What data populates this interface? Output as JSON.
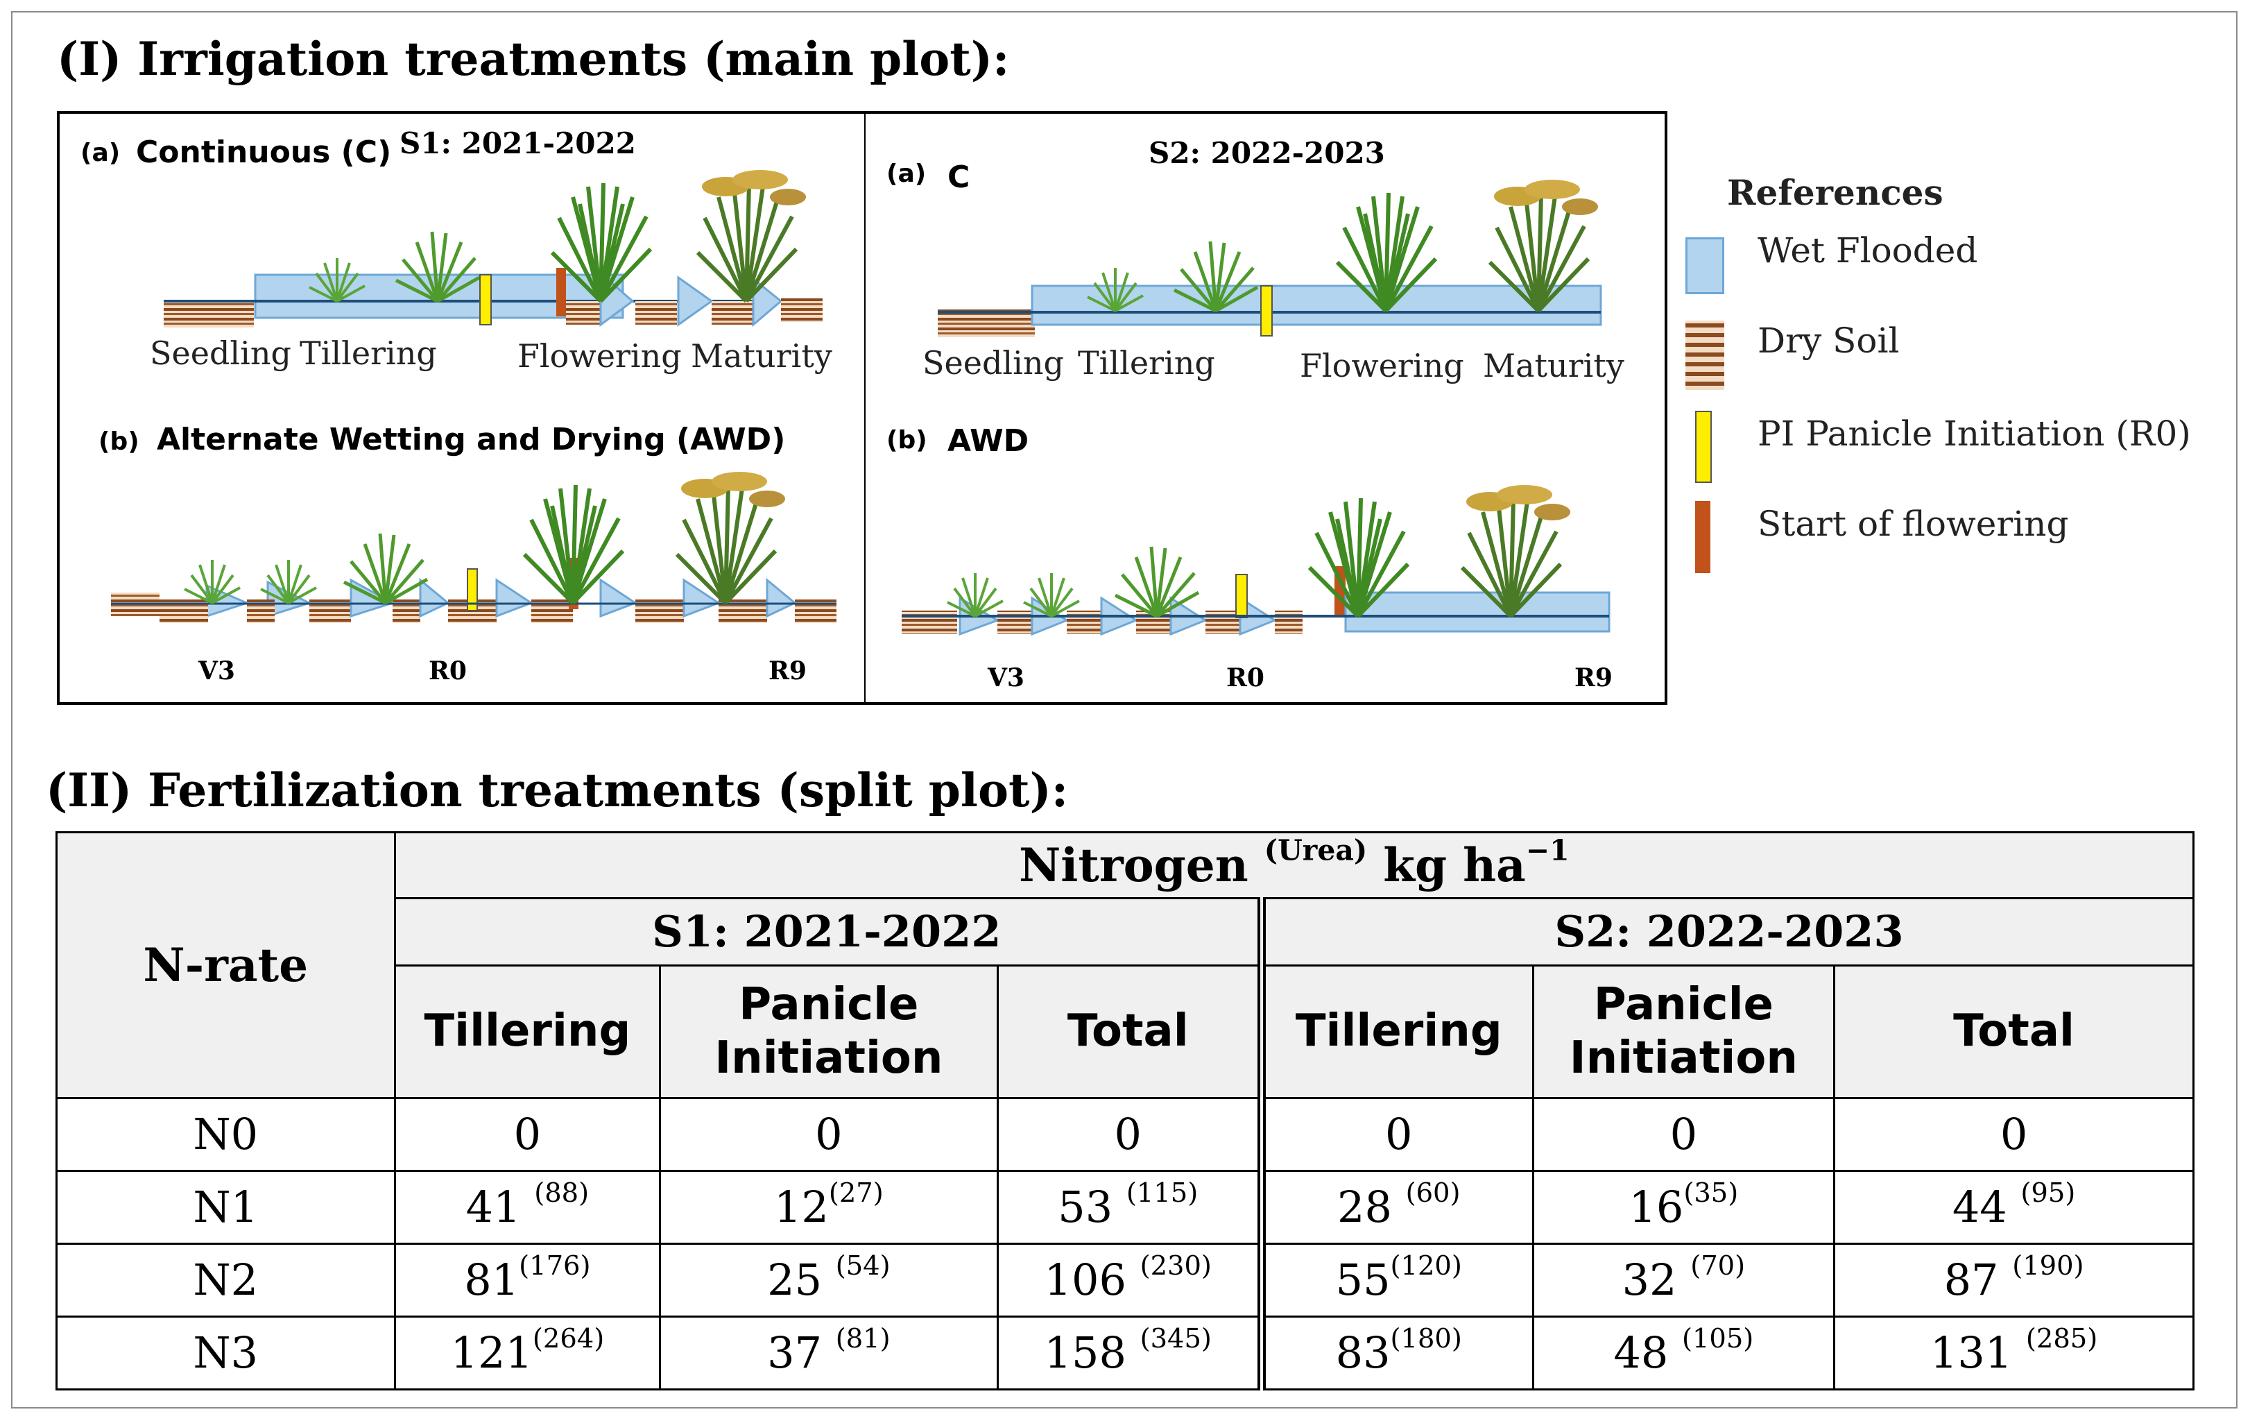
{
  "section1": {
    "title": "(I) Irrigation treatments (main plot):"
  },
  "panel_s1": {
    "season": "S1: 2021-2022",
    "a_letter": "(a)",
    "a_title": "Continuous (C)",
    "a_stages": [
      "Seedling",
      "Tillering",
      "Flowering",
      "Maturity"
    ],
    "b_letter": "(b)",
    "b_title": "Alternate Wetting and Drying (AWD)",
    "b_stages": [
      "V3",
      "R0",
      "R9"
    ]
  },
  "panel_s2": {
    "season": "S2: 2022-2023",
    "a_letter": "(a)",
    "a_title": "C",
    "a_stages": [
      "Seedling",
      "Tillering",
      "Flowering",
      "Maturity"
    ],
    "b_letter": "(b)",
    "b_title": "AWD",
    "b_stages": [
      "V3",
      "R0",
      "R9"
    ]
  },
  "references": {
    "title": "References",
    "items": [
      {
        "label": "Wet Flooded",
        "icon": "wet-flooded-swatch",
        "color": "#b3d4ee"
      },
      {
        "label": "Dry Soil",
        "icon": "dry-soil-swatch",
        "color": "#8b4a20"
      },
      {
        "label": "PI Panicle Initiation (R0)",
        "icon": "panicle-initiation-marker",
        "color": "#ffee00"
      },
      {
        "label": "Start of flowering",
        "icon": "flowering-start-marker",
        "color": "#c0521a"
      }
    ]
  },
  "section2": {
    "title": "(II) Fertilization treatments (split plot):"
  },
  "table": {
    "nrate_header": "N-rate",
    "nitrogen_header": "Nitrogen",
    "nitrogen_sup": "(Urea)",
    "nitrogen_unit": "kg ha",
    "nitrogen_unit_sup": "−1",
    "season1": "S1: 2021-2022",
    "season2": "S2: 2022-2023",
    "col_tillering": "Tillering",
    "col_panicle_1": "Panicle",
    "col_panicle_2": "Initiation",
    "col_total": "Total",
    "rows": [
      {
        "label": "N0",
        "cells": [
          [
            "0",
            ""
          ],
          [
            "0",
            ""
          ],
          [
            "0",
            ""
          ],
          [
            "0",
            ""
          ],
          [
            "0",
            ""
          ],
          [
            "0",
            ""
          ]
        ]
      },
      {
        "label": "N1",
        "cells": [
          [
            "41 ",
            "(88)"
          ],
          [
            "12",
            "(27)"
          ],
          [
            "53 ",
            "(115)"
          ],
          [
            "28 ",
            "(60)"
          ],
          [
            "16",
            "(35)"
          ],
          [
            "44 ",
            "(95)"
          ]
        ]
      },
      {
        "label": "N2",
        "cells": [
          [
            "81",
            "(176)"
          ],
          [
            "25 ",
            "(54)"
          ],
          [
            "106 ",
            "(230)"
          ],
          [
            "55",
            "(120)"
          ],
          [
            "32 ",
            "(70)"
          ],
          [
            "87 ",
            "(190)"
          ]
        ]
      },
      {
        "label": "N3",
        "cells": [
          [
            "121",
            "(264)"
          ],
          [
            "37 ",
            "(81)"
          ],
          [
            "158 ",
            "(345)"
          ],
          [
            "83",
            "(180)"
          ],
          [
            "48 ",
            "(105)"
          ],
          [
            "131 ",
            "(285)"
          ]
        ]
      }
    ]
  },
  "colors": {
    "water": "#b3d4ee",
    "water_edge": "#6da7d6",
    "soil_dark": "#8b4a20",
    "soil_light": "#f3dcc4",
    "pi_marker": "#ffee00",
    "flower_marker": "#c0521a",
    "plant_green": "#4f9a2c"
  }
}
